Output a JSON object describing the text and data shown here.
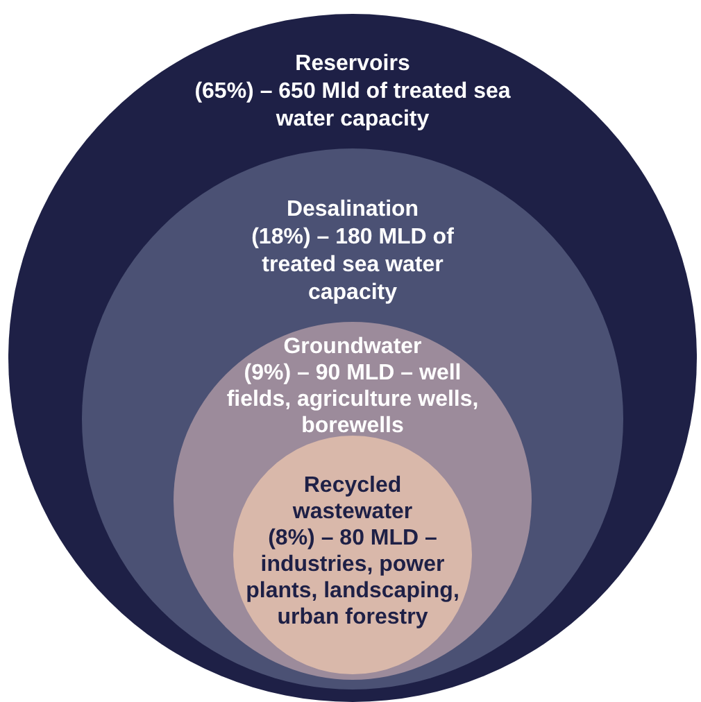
{
  "chart_data": {
    "type": "other",
    "categories": [
      "Reservoirs",
      "Desalination",
      "Groundwater",
      "Recycled wastewater"
    ],
    "values": [
      65,
      18,
      9,
      8
    ],
    "value_labels": [
      "(65%) – 650 Mld of treated sea water capacity",
      "(18%) – 180 MLD of treated sea water capacity",
      "(9%) – 90 MLD – well fields, agriculture wells, borewells",
      "(8%) – 80 MLD – industries, power plants, landscaping, urban forestry"
    ],
    "colors": [
      "#1e2046",
      "#4b5174",
      "#9c8b9b",
      "#d9b8aa"
    ]
  }
}
